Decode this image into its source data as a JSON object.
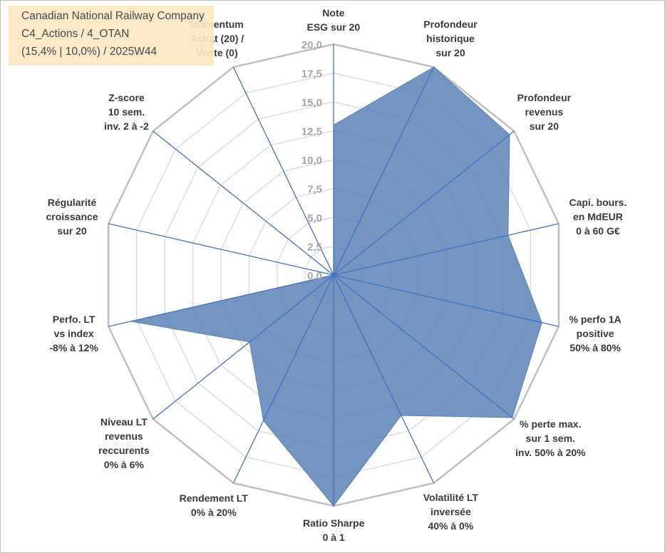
{
  "title_box": {
    "line1": "Canadian National Railway Company",
    "line2": "C4_Actions / 4_OTAN",
    "line3": "(15,4% | 10,0%) / 2025W44"
  },
  "chart_data": {
    "type": "radar",
    "rmin": 0,
    "rmax": 20,
    "tick_step": 2.5,
    "tick_labels": [
      "0,0",
      "2,5",
      "5,0",
      "7,5",
      "10,0",
      "12,5",
      "15,0",
      "17,5",
      "20,0"
    ],
    "axes": [
      {
        "lines": [
          "Note",
          "ESG sur 20"
        ],
        "value": 13.0
      },
      {
        "lines": [
          "Profondeur",
          "historique",
          "sur 20"
        ],
        "value": 20.0
      },
      {
        "lines": [
          "Profondeur",
          "revenus",
          "sur 20"
        ],
        "value": 19.5
      },
      {
        "lines": [
          "Capi. bours.",
          "en MdEUR",
          "0 à 60 G€"
        ],
        "value": 15.5
      },
      {
        "lines": [
          "% perfo 1A",
          "positive",
          "50% à 80%"
        ],
        "value": 18.5
      },
      {
        "lines": [
          "% perte max.",
          "sur 1 sem.",
          "inv. 50% à 20%"
        ],
        "value": 19.8
      },
      {
        "lines": [
          "Volatilité LT",
          "inversée",
          "40% à 0%"
        ],
        "value": 13.5
      },
      {
        "lines": [
          "Ratio Sharpe",
          "0 à 1"
        ],
        "value": 20.0
      },
      {
        "lines": [
          "Rendement LT",
          "0% à 20%"
        ],
        "value": 14.0
      },
      {
        "lines": [
          "Niveau LT",
          "revenus",
          "reccurents",
          "0% à 6%"
        ],
        "value": 9.3
      },
      {
        "lines": [
          "Perfo. LT",
          "vs index",
          "-8% à 12%"
        ],
        "value": 18.0
      },
      {
        "lines": [
          "Régularité",
          "croissance",
          "sur 20"
        ],
        "value": 0.0
      },
      {
        "lines": [
          "Z-score",
          "10 sem.",
          "inv. 2 à -2"
        ],
        "value": 0.0
      },
      {
        "lines": [
          "Momentum",
          "Achat (20) /",
          "Vente (0)"
        ],
        "value": 0.0
      }
    ],
    "colors": {
      "fill": "#5b83b5",
      "stroke": "#4472c4",
      "grid": "#d9d9d9",
      "outer_grid": "#bfbfbf",
      "spoke": "#4472c4"
    }
  }
}
